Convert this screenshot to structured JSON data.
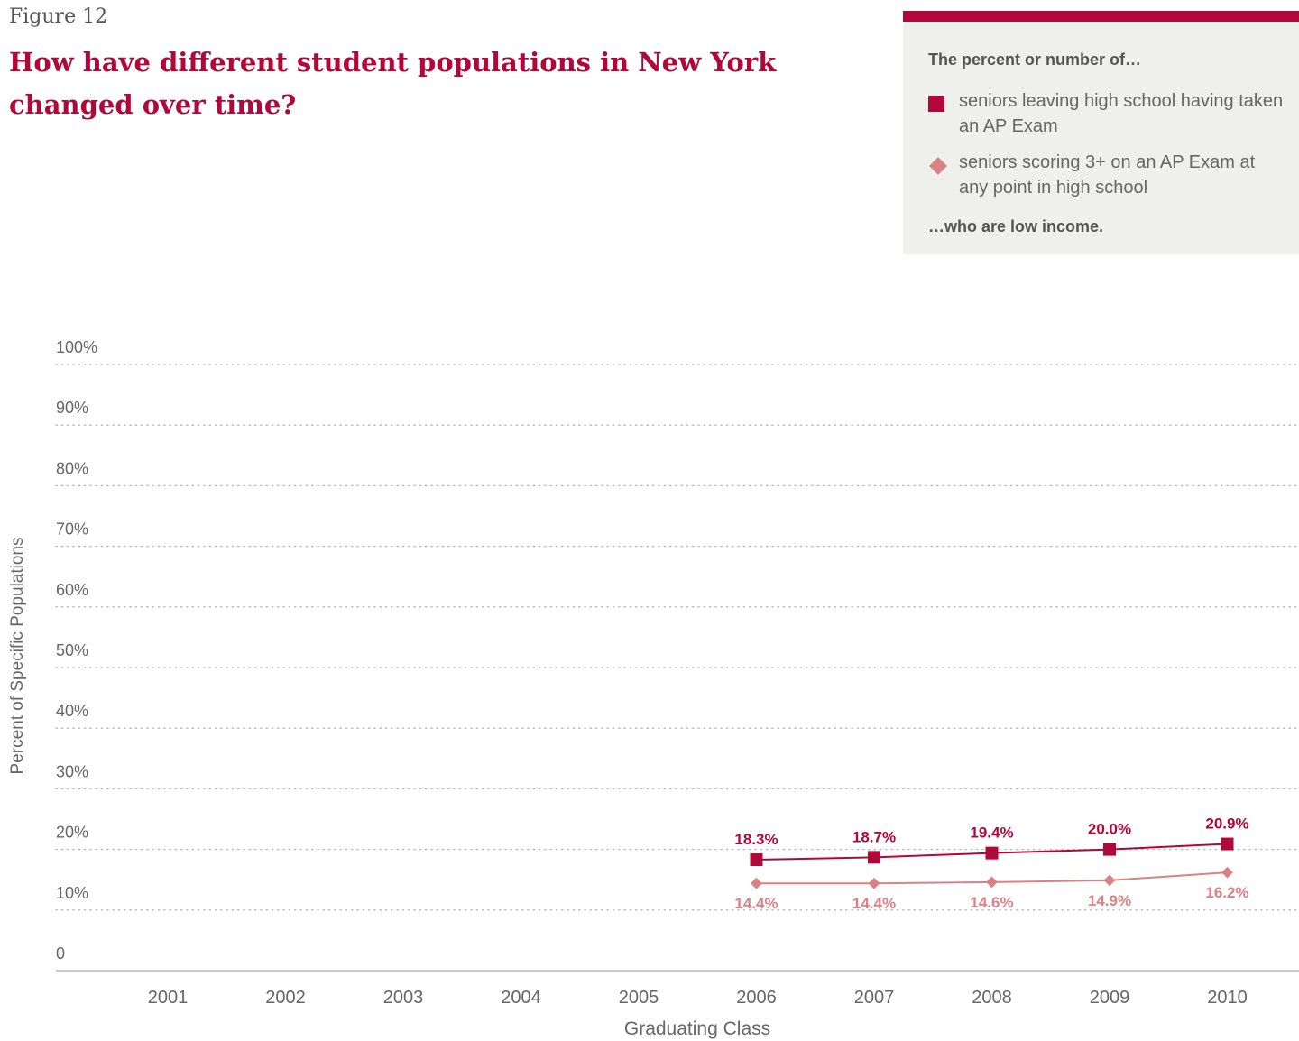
{
  "figure_label": "Figure 12",
  "title": "How have different student populations in New York changed over time?",
  "legend": {
    "heading": "The percent or number of…",
    "items": [
      {
        "label": "seniors leaving high school having taken an AP Exam",
        "marker": "square",
        "color": "#b0083a"
      },
      {
        "label": "seniors scoring 3+ on an AP Exam at any point in high school",
        "marker": "diamond",
        "color": "#d98286"
      }
    ],
    "footer": "…who are low income."
  },
  "chart_data": {
    "type": "line",
    "xlabel": "Graduating Class",
    "ylabel": "Percent of Specific Populations",
    "categories": [
      "2001",
      "2002",
      "2003",
      "2004",
      "2005",
      "2006",
      "2007",
      "2008",
      "2009",
      "2010"
    ],
    "ylim": [
      0,
      100
    ],
    "yticks": [
      "0",
      "10%",
      "20%",
      "30%",
      "40%",
      "50%",
      "60%",
      "70%",
      "80%",
      "90%",
      "100%"
    ],
    "grid": true,
    "series": [
      {
        "name": "seniors leaving high school having taken an AP Exam",
        "marker": "square",
        "color": "#b0083a",
        "values": [
          null,
          null,
          null,
          null,
          null,
          18.3,
          18.7,
          19.4,
          20.0,
          20.9
        ],
        "labels": [
          null,
          null,
          null,
          null,
          null,
          "18.3%",
          "18.7%",
          "19.4%",
          "20.0%",
          "20.9%"
        ]
      },
      {
        "name": "seniors scoring 3+ on an AP Exam at any point in high school",
        "marker": "diamond",
        "color": "#d98286",
        "values": [
          null,
          null,
          null,
          null,
          null,
          14.4,
          14.4,
          14.6,
          14.9,
          16.2
        ],
        "labels": [
          null,
          null,
          null,
          null,
          null,
          "14.4%",
          "14.4%",
          "14.6%",
          "14.9%",
          "16.2%"
        ]
      }
    ]
  }
}
